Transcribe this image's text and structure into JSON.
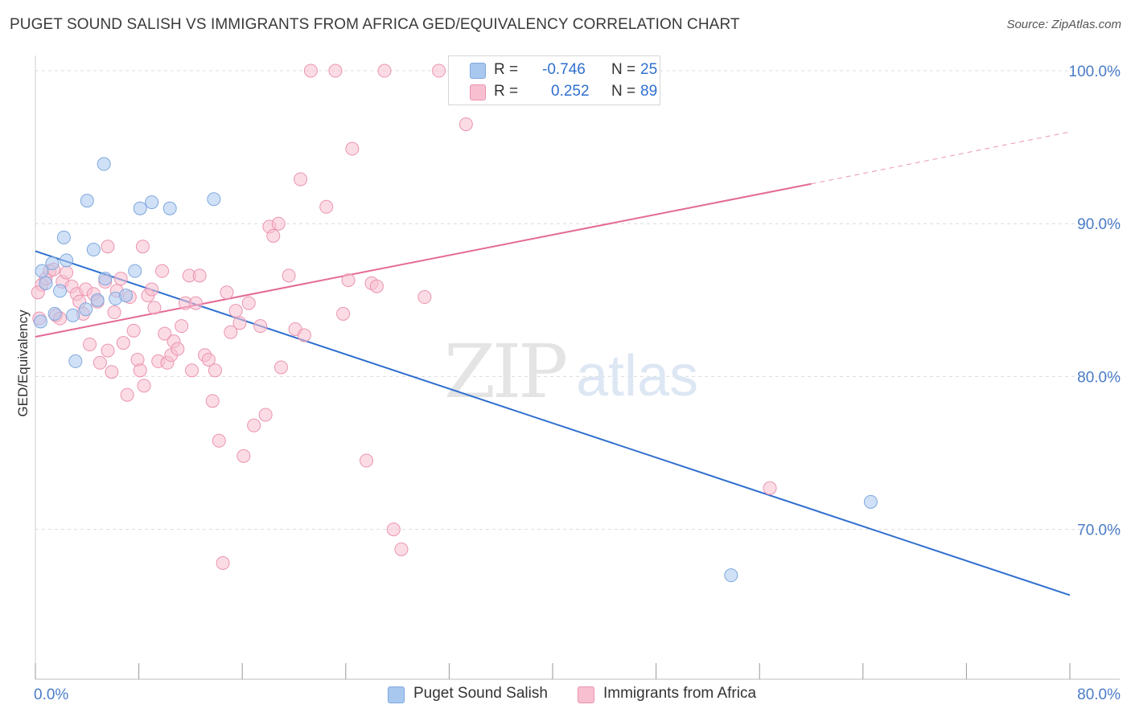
{
  "header": {
    "title": "PUGET SOUND SALISH VS IMMIGRANTS FROM AFRICA GED/EQUIVALENCY CORRELATION CHART",
    "source": "Source: ZipAtlas.com"
  },
  "watermark": {
    "part1": "ZIP",
    "part2": "atlas"
  },
  "legend": {
    "rows": [
      {
        "r_label": "R =",
        "r_value": "-0.746",
        "n_label": "N =",
        "n_value": "25",
        "color": "#a9c8f0",
        "border": "#7ea7dd"
      },
      {
        "r_label": "R =",
        "r_value": "0.252",
        "n_label": "N =",
        "n_value": "89",
        "color": "#f7bfd0",
        "border": "#eb94b0"
      }
    ]
  },
  "bottom_legend": [
    {
      "label": "Puget Sound Salish",
      "color": "#a9c8f0",
      "border": "#7ea7dd"
    },
    {
      "label": "Immigrants from Africa",
      "color": "#f7bfd0",
      "border": "#eb94b0"
    }
  ],
  "chart_data": {
    "type": "scatter",
    "title": "PUGET SOUND SALISH VS IMMIGRANTS FROM AFRICA GED/EQUIVALENCY CORRELATION CHART",
    "xlabel": "",
    "ylabel": "GED/Equivalency",
    "xlim": [
      0,
      80
    ],
    "ylim": [
      60.2,
      101
    ],
    "x_tick_labels": [
      "0.0%",
      "80.0%"
    ],
    "y_ticks": [
      {
        "value": 100,
        "label": "100.0%"
      },
      {
        "value": 90,
        "label": "90.0%"
      },
      {
        "value": 80,
        "label": "80.0%"
      },
      {
        "value": 70,
        "label": "70.0%"
      }
    ],
    "grid": {
      "horizontal": true,
      "style": "dashed"
    },
    "legend_position": "top-center",
    "series": [
      {
        "name": "Puget Sound Salish",
        "color": "#a9c8f0",
        "stroke": "#7ea7dd",
        "trend_color": "#2f6fcf",
        "trend": {
          "x0": 0,
          "y0": 88.2,
          "x1": 80,
          "y1": 65.7
        },
        "points": [
          [
            0.4,
            83.6
          ],
          [
            0.5,
            86.9
          ],
          [
            0.8,
            86.1
          ],
          [
            1.3,
            87.4
          ],
          [
            1.5,
            84.1
          ],
          [
            1.9,
            85.6
          ],
          [
            2.2,
            89.1
          ],
          [
            2.4,
            87.6
          ],
          [
            2.9,
            84.0
          ],
          [
            3.1,
            81.0
          ],
          [
            3.9,
            84.4
          ],
          [
            4.0,
            91.5
          ],
          [
            4.5,
            88.3
          ],
          [
            5.3,
            93.9
          ],
          [
            5.4,
            86.4
          ],
          [
            6.2,
            85.1
          ],
          [
            7.0,
            85.3
          ],
          [
            7.7,
            86.9
          ],
          [
            8.1,
            91.0
          ],
          [
            9.0,
            91.4
          ],
          [
            10.4,
            91.0
          ],
          [
            13.8,
            91.6
          ],
          [
            53.8,
            67.0
          ],
          [
            64.6,
            71.8
          ],
          [
            4.8,
            85.0
          ]
        ]
      },
      {
        "name": "Immigrants from Africa",
        "color": "#f7bfd0",
        "stroke": "#eb94b0",
        "trend_color": "#e46a96",
        "trend": {
          "x0": 0,
          "y0": 82.6,
          "x1": 60,
          "y1": 92.6
        },
        "trend_dashed": {
          "x0": 60,
          "y0": 92.6,
          "x1": 80,
          "y1": 96.0
        },
        "points": [
          [
            0.3,
            83.8
          ],
          [
            0.5,
            86.0
          ],
          [
            0.8,
            86.4
          ],
          [
            1.1,
            86.9
          ],
          [
            1.4,
            87.0
          ],
          [
            1.6,
            84.0
          ],
          [
            1.9,
            83.8
          ],
          [
            2.1,
            86.2
          ],
          [
            2.4,
            86.8
          ],
          [
            2.8,
            85.9
          ],
          [
            3.2,
            85.4
          ],
          [
            3.4,
            84.9
          ],
          [
            3.7,
            84.1
          ],
          [
            3.9,
            85.7
          ],
          [
            4.2,
            82.1
          ],
          [
            4.5,
            85.4
          ],
          [
            4.8,
            84.9
          ],
          [
            5.0,
            80.9
          ],
          [
            5.4,
            86.2
          ],
          [
            5.6,
            81.7
          ],
          [
            5.9,
            80.3
          ],
          [
            6.1,
            84.2
          ],
          [
            6.3,
            85.6
          ],
          [
            6.6,
            86.4
          ],
          [
            6.8,
            82.2
          ],
          [
            7.1,
            78.8
          ],
          [
            7.3,
            85.2
          ],
          [
            7.6,
            83.0
          ],
          [
            7.9,
            81.1
          ],
          [
            8.1,
            80.4
          ],
          [
            8.4,
            79.4
          ],
          [
            8.7,
            85.3
          ],
          [
            9.0,
            85.7
          ],
          [
            9.2,
            84.5
          ],
          [
            9.5,
            81.0
          ],
          [
            9.8,
            86.9
          ],
          [
            10.0,
            82.8
          ],
          [
            10.2,
            80.9
          ],
          [
            10.5,
            81.4
          ],
          [
            10.7,
            82.3
          ],
          [
            11.0,
            81.8
          ],
          [
            11.3,
            83.3
          ],
          [
            11.6,
            84.8
          ],
          [
            11.9,
            86.6
          ],
          [
            12.1,
            80.4
          ],
          [
            12.4,
            84.8
          ],
          [
            12.7,
            86.6
          ],
          [
            13.1,
            81.4
          ],
          [
            13.4,
            81.1
          ],
          [
            13.7,
            78.4
          ],
          [
            13.9,
            80.4
          ],
          [
            14.2,
            75.8
          ],
          [
            14.5,
            67.8
          ],
          [
            14.8,
            85.5
          ],
          [
            15.1,
            82.9
          ],
          [
            15.5,
            84.3
          ],
          [
            15.8,
            83.5
          ],
          [
            16.1,
            74.8
          ],
          [
            16.5,
            84.8
          ],
          [
            16.9,
            76.8
          ],
          [
            17.4,
            83.3
          ],
          [
            17.8,
            77.5
          ],
          [
            18.1,
            89.8
          ],
          [
            18.4,
            89.2
          ],
          [
            18.8,
            90.0
          ],
          [
            19.0,
            80.6
          ],
          [
            19.6,
            86.6
          ],
          [
            20.1,
            83.1
          ],
          [
            20.5,
            92.9
          ],
          [
            20.8,
            82.7
          ],
          [
            21.3,
            100.0
          ],
          [
            22.5,
            91.1
          ],
          [
            23.2,
            100.0
          ],
          [
            23.8,
            84.1
          ],
          [
            24.2,
            86.3
          ],
          [
            24.5,
            94.9
          ],
          [
            25.6,
            74.5
          ],
          [
            26.0,
            86.1
          ],
          [
            26.4,
            85.9
          ],
          [
            27.0,
            100.0
          ],
          [
            27.7,
            70.0
          ],
          [
            28.3,
            68.7
          ],
          [
            30.1,
            85.2
          ],
          [
            31.2,
            100.0
          ],
          [
            33.3,
            96.5
          ],
          [
            56.8,
            72.7
          ],
          [
            0.2,
            85.5
          ],
          [
            5.6,
            88.5
          ],
          [
            8.3,
            88.5
          ]
        ]
      }
    ]
  }
}
